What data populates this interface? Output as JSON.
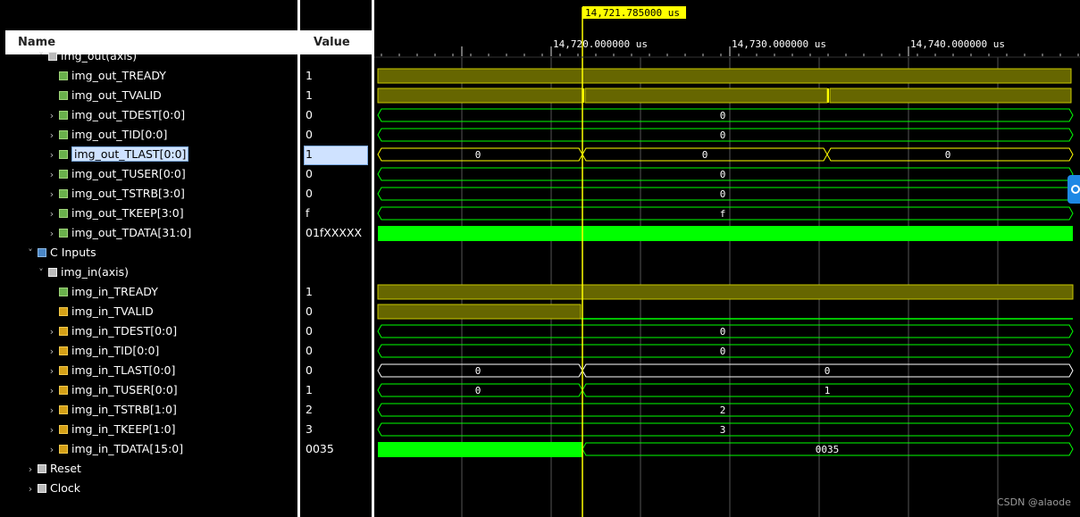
{
  "header": {
    "name_label": "Name",
    "value_label": "Value",
    "cursor_time": "14,721.785000 us",
    "time_ticks": [
      "14,720.000000 us",
      "14,730.000000 us",
      "14,740.000000 us"
    ]
  },
  "rows": [
    {
      "name": "img_out(axis)",
      "value": "",
      "indent": 3,
      "icon": "port",
      "chevron": "down"
    },
    {
      "name": "img_out_TREADY",
      "value": "1",
      "indent": 4,
      "icon": "green",
      "chevron": ""
    },
    {
      "name": "img_out_TVALID",
      "value": "1",
      "indent": 4,
      "icon": "green",
      "chevron": ""
    },
    {
      "name": "img_out_TDEST[0:0]",
      "value": "0",
      "indent": 4,
      "icon": "green",
      "chevron": "right"
    },
    {
      "name": "img_out_TID[0:0]",
      "value": "0",
      "indent": 4,
      "icon": "green",
      "chevron": "right"
    },
    {
      "name": "img_out_TLAST[0:0]",
      "value": "1",
      "indent": 4,
      "icon": "green",
      "chevron": "right",
      "selected": true
    },
    {
      "name": "img_out_TUSER[0:0]",
      "value": "0",
      "indent": 4,
      "icon": "green",
      "chevron": "right"
    },
    {
      "name": "img_out_TSTRB[3:0]",
      "value": "0",
      "indent": 4,
      "icon": "green",
      "chevron": "right"
    },
    {
      "name": "img_out_TKEEP[3:0]",
      "value": "f",
      "indent": 4,
      "icon": "green",
      "chevron": "right"
    },
    {
      "name": "img_out_TDATA[31:0]",
      "value": "01fXXXXX",
      "indent": 4,
      "icon": "green",
      "chevron": "right"
    },
    {
      "name": "C Inputs",
      "value": "",
      "indent": 2,
      "icon": "blue",
      "chevron": "down"
    },
    {
      "name": "img_in(axis)",
      "value": "",
      "indent": 3,
      "icon": "port",
      "chevron": "down"
    },
    {
      "name": "img_in_TREADY",
      "value": "1",
      "indent": 4,
      "icon": "green",
      "chevron": ""
    },
    {
      "name": "img_in_TVALID",
      "value": "0",
      "indent": 4,
      "icon": "orange",
      "chevron": ""
    },
    {
      "name": "img_in_TDEST[0:0]",
      "value": "0",
      "indent": 4,
      "icon": "orange",
      "chevron": "right"
    },
    {
      "name": "img_in_TID[0:0]",
      "value": "0",
      "indent": 4,
      "icon": "orange",
      "chevron": "right"
    },
    {
      "name": "img_in_TLAST[0:0]",
      "value": "0",
      "indent": 4,
      "icon": "orange",
      "chevron": "right"
    },
    {
      "name": "img_in_TUSER[0:0]",
      "value": "1",
      "indent": 4,
      "icon": "orange",
      "chevron": "right"
    },
    {
      "name": "img_in_TSTRB[1:0]",
      "value": "2",
      "indent": 4,
      "icon": "orange",
      "chevron": "right"
    },
    {
      "name": "img_in_TKEEP[1:0]",
      "value": "3",
      "indent": 4,
      "icon": "orange",
      "chevron": "right"
    },
    {
      "name": "img_in_TDATA[15:0]",
      "value": "0035",
      "indent": 4,
      "icon": "orange",
      "chevron": "right"
    },
    {
      "name": "Reset",
      "value": "",
      "indent": 2,
      "icon": "port",
      "chevron": "right"
    },
    {
      "name": "Clock",
      "value": "",
      "indent": 2,
      "icon": "port",
      "chevron": "right"
    }
  ],
  "waves": {
    "t_out_tdest": "0",
    "t_out_tid": "0",
    "t_out_tlast": [
      "0",
      "0",
      "0"
    ],
    "t_out_tuser": "0",
    "t_out_tstrb": "0",
    "t_out_tkeep": "f",
    "t_in_tdest": "0",
    "t_in_tid": "0",
    "t_in_tlast": [
      "0",
      "0"
    ],
    "t_in_tuser": [
      "0",
      "1"
    ],
    "t_in_tstrb": "2",
    "t_in_tkeep": "3",
    "t_in_tdata": "0035"
  },
  "watermark": "CSDN @alaode"
}
